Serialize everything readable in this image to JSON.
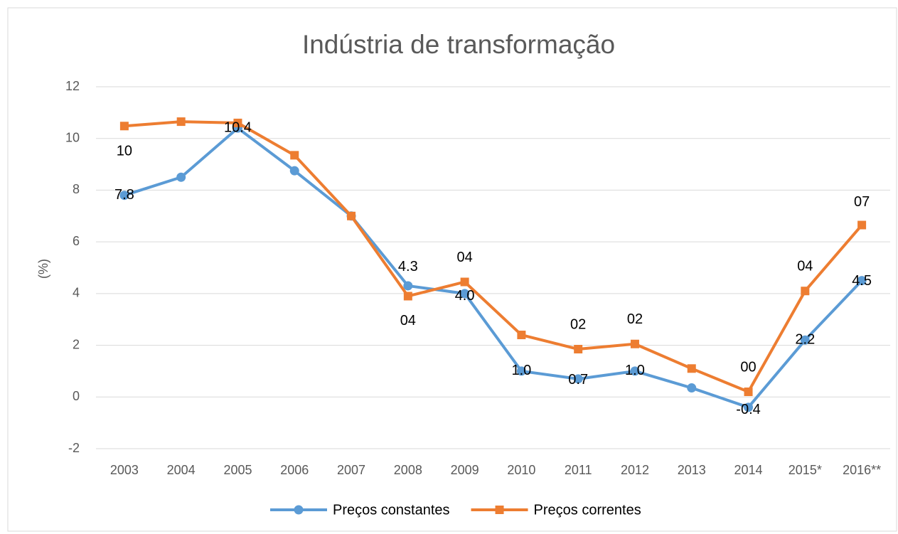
{
  "chart_data": {
    "type": "line",
    "title": "Indústria de transformação",
    "y_label": "(%)",
    "categories": [
      "2003",
      "2004",
      "2005",
      "2006",
      "2007",
      "2008",
      "2009",
      "2010",
      "2011",
      "2012",
      "2013",
      "2014",
      "2015*",
      "2016**"
    ],
    "series": [
      {
        "name": "Preços constantes",
        "color": "#5b9bd5",
        "marker": "circle",
        "values": [
          7.8,
          8.5,
          10.4,
          8.75,
          7.0,
          4.3,
          4.0,
          1.0,
          0.7,
          1.0,
          0.35,
          -0.4,
          2.2,
          4.5
        ],
        "value_labels": [
          "7.8",
          null,
          "10.4",
          null,
          null,
          "4.3",
          "4.0",
          "1.0",
          "0.7",
          "1.0",
          null,
          "-0.4",
          "2.2",
          "4.5"
        ]
      },
      {
        "name": "Preços correntes",
        "color": "#ed7d31",
        "marker": "square",
        "values": [
          10.48,
          10.65,
          10.6,
          9.35,
          7.0,
          3.9,
          4.45,
          2.4,
          1.85,
          2.05,
          1.1,
          0.2,
          4.1,
          6.65
        ],
        "value_labels": [
          "10",
          null,
          null,
          null,
          null,
          "04",
          "04",
          null,
          "02",
          "02",
          null,
          "00",
          "04",
          "07"
        ]
      }
    ],
    "ylim": [
      -2,
      12
    ],
    "yticks": [
      -2,
      0,
      2,
      4,
      6,
      8,
      10,
      12
    ],
    "grid": true,
    "legend": "bottom"
  }
}
